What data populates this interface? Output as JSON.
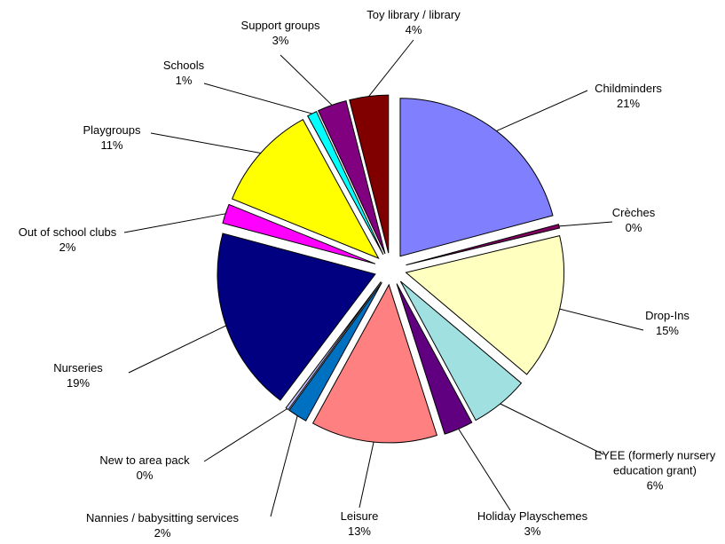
{
  "chart_data": {
    "type": "pie",
    "categories": [
      "Childminders",
      "Crèches",
      "Drop-Ins",
      "EYEE (formerly nursery education grant)",
      "Holiday Playschemes",
      "Leisure",
      "Nannies / babysitting services",
      "New to area pack",
      "Nurseries",
      "Out of school clubs",
      "Playgroups",
      "Schools",
      "Support groups",
      "Toy library / library"
    ],
    "values": [
      21,
      0.4,
      15,
      6,
      3,
      13,
      2,
      0.3,
      19,
      2,
      11,
      1,
      3,
      4
    ],
    "value_labels": [
      "21%",
      "0%",
      "15%",
      "6%",
      "3%",
      "13%",
      "2%",
      "0%",
      "19%",
      "2%",
      "11%",
      "1%",
      "3%",
      "4%"
    ],
    "colors": [
      "#8080ff",
      "#800060",
      "#ffffc0",
      "#a0e0e0",
      "#600080",
      "#ff8080",
      "#0070c0",
      "#c0c0ff",
      "#000080",
      "#ff00ff",
      "#ffff00",
      "#00ffff",
      "#800080",
      "#800000"
    ]
  }
}
